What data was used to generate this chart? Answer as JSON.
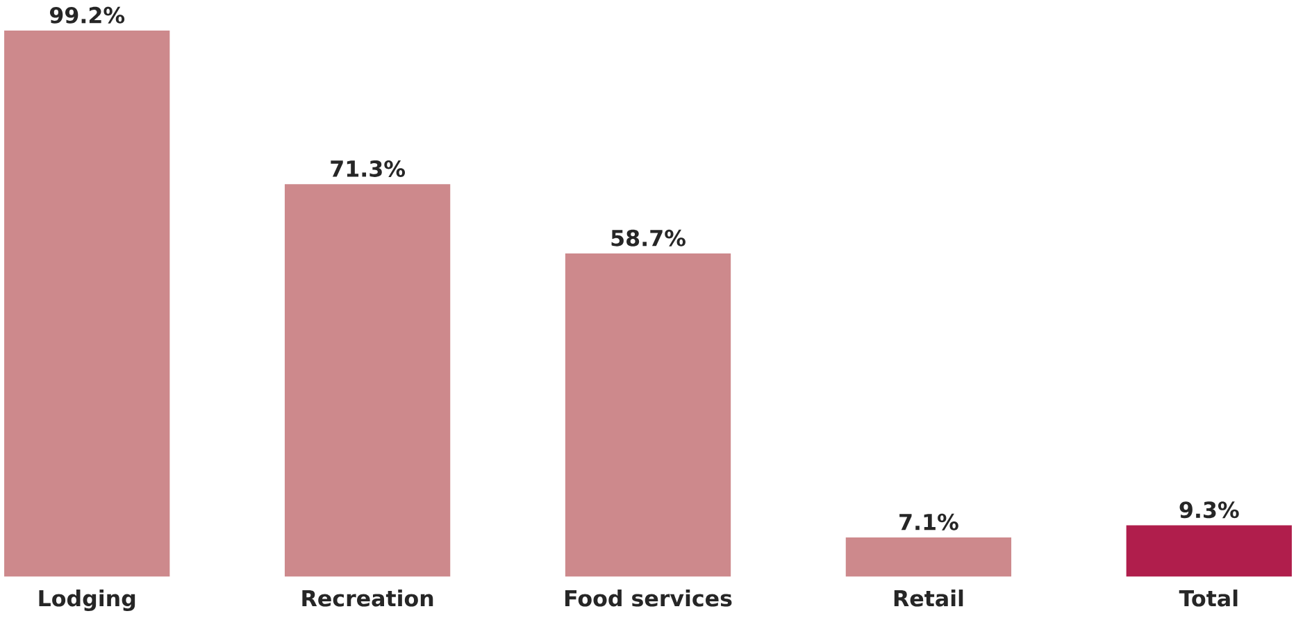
{
  "chart_data": {
    "type": "bar",
    "categories": [
      "Lodging",
      "Recreation",
      "Food services",
      "Retail",
      "Total"
    ],
    "values": [
      99.2,
      71.3,
      58.7,
      7.1,
      9.3
    ],
    "colors": [
      "#cd898c",
      "#cd898c",
      "#cd898c",
      "#cd898c",
      "#b01e4c"
    ],
    "value_labels": [
      "99.2%",
      "71.3%",
      "58.7%",
      "7.1%",
      "9.3%"
    ]
  }
}
